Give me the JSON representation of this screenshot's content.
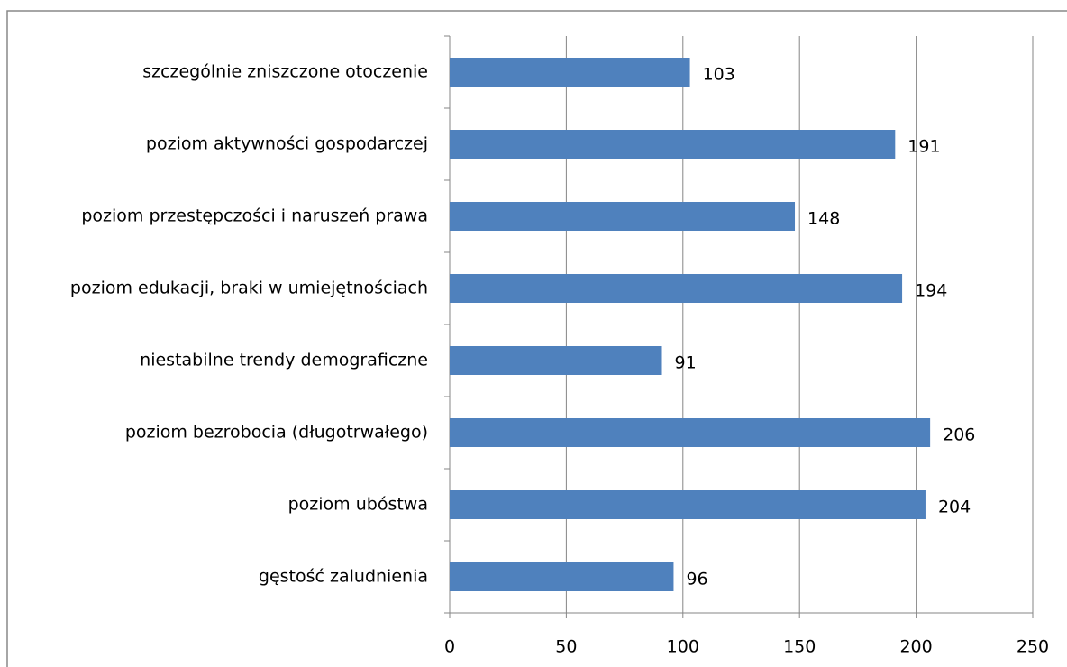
{
  "chart_data": {
    "type": "bar",
    "orientation": "horizontal",
    "categories": [
      "szczególnie zniszczone otoczenie",
      "poziom aktywności gospodarczej",
      "poziom przestępczości i naruszeń prawa",
      "poziom edukacji, braki w umiejętnościach",
      "niestabilne trendy demograficzne",
      "poziom bezrobocia (długotrwałego)",
      "poziom ubóstwa",
      "gęstość zaludnienia"
    ],
    "values": [
      103,
      191,
      148,
      194,
      91,
      206,
      204,
      96
    ],
    "color": "#4f81bd",
    "xlim": [
      0,
      250
    ],
    "xticks": [
      0,
      50,
      100,
      150,
      200,
      250
    ],
    "grid": true
  }
}
